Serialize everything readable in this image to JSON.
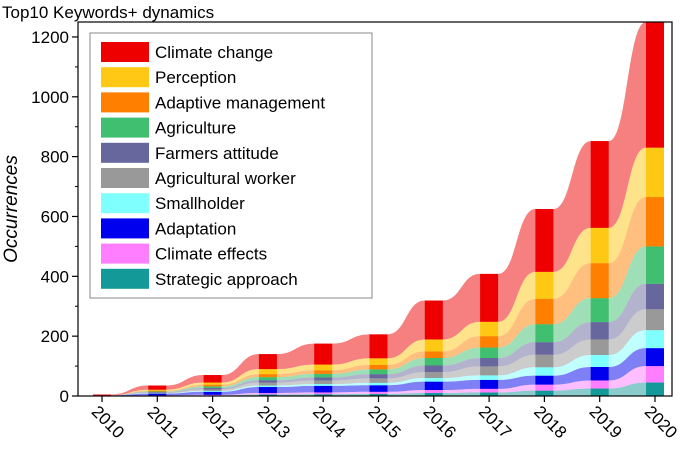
{
  "chart_data": {
    "type": "area",
    "title": "Top10 Keywords+ dynamics",
    "xlabel": "",
    "ylabel": "Occurrences",
    "categories": [
      "2010",
      "2011",
      "2012",
      "2013",
      "2014",
      "2015",
      "2016",
      "2017",
      "2018",
      "2019",
      "2020"
    ],
    "ylim": [
      0,
      1250
    ],
    "yticks": [
      0,
      200,
      400,
      600,
      800,
      1000,
      1200
    ],
    "grid": false,
    "legend_position": "top-left",
    "series": [
      {
        "name": "Strategic approach",
        "color": "#139a98",
        "values": [
          0,
          1,
          2,
          5,
          6,
          7,
          10,
          12,
          18,
          25,
          45
        ]
      },
      {
        "name": "Climate effects",
        "color": "#ff7eff",
        "values": [
          0,
          1,
          2,
          5,
          6,
          7,
          10,
          12,
          20,
          27,
          55
        ]
      },
      {
        "name": "Adaptation",
        "color": "#0000ee",
        "values": [
          2,
          6,
          10,
          20,
          22,
          22,
          28,
          30,
          30,
          45,
          60
        ]
      },
      {
        "name": "Smallholder",
        "color": "#80ffff",
        "values": [
          0,
          1,
          3,
          5,
          6,
          8,
          12,
          15,
          28,
          40,
          60
        ]
      },
      {
        "name": "Agricultural worker",
        "color": "#999999",
        "values": [
          0,
          2,
          5,
          10,
          12,
          15,
          20,
          30,
          42,
          52,
          70
        ]
      },
      {
        "name": "Farmers attitude",
        "color": "#67679e",
        "values": [
          0,
          2,
          5,
          8,
          10,
          14,
          22,
          28,
          42,
          58,
          85
        ]
      },
      {
        "name": "Agriculture",
        "color": "#3fbf6f",
        "values": [
          0,
          2,
          5,
          10,
          12,
          16,
          25,
          35,
          60,
          80,
          125
        ]
      },
      {
        "name": "Adaptive management",
        "color": "#ff7f00",
        "values": [
          0,
          3,
          6,
          10,
          12,
          15,
          22,
          38,
          85,
          117,
          165
        ]
      },
      {
        "name": "Perception",
        "color": "#ffc815",
        "values": [
          0,
          3,
          7,
          17,
          19,
          22,
          40,
          48,
          90,
          118,
          165
        ]
      },
      {
        "name": "Climate change",
        "color": "#ee0000",
        "values": [
          3,
          14,
          25,
          50,
          70,
          80,
          130,
          160,
          210,
          290,
          420
        ]
      }
    ]
  }
}
